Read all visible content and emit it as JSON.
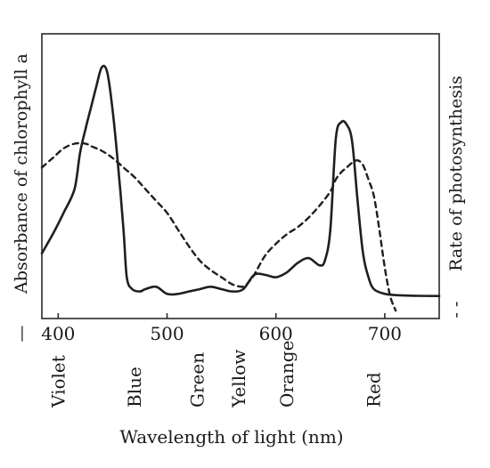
{
  "chart_data": {
    "type": "line",
    "xlabel": "Wavelength of light (nm)",
    "ylabel_left": "Absorbance of chlorophyll a",
    "ylabel_right": "Rate of photosynthesis",
    "legend_left_marker": "—",
    "legend_right_marker": "- -",
    "xlim": [
      385,
      750
    ],
    "ylim": [
      0,
      100
    ],
    "x_ticks": [
      400,
      500,
      600,
      700
    ],
    "color_labels": [
      {
        "label": "Violet",
        "x": 400
      },
      {
        "label": "Blue",
        "x": 470
      },
      {
        "label": "Green",
        "x": 528
      },
      {
        "label": "Yellow",
        "x": 566
      },
      {
        "label": "Orange",
        "x": 610
      },
      {
        "label": "Red",
        "x": 690
      }
    ],
    "series": [
      {
        "style": "solid",
        "x": [
          385,
          395,
          405,
          415,
          420,
          425,
          430,
          435,
          440,
          445,
          450,
          455,
          460,
          463,
          468,
          475,
          480,
          490,
          500,
          510,
          520,
          530,
          540,
          550,
          560,
          570,
          580,
          590,
          600,
          610,
          620,
          630,
          640,
          645,
          650,
          655,
          660,
          665,
          670,
          675,
          680,
          685,
          690,
          700,
          710,
          720,
          730,
          750
        ],
        "y": [
          18,
          26,
          35,
          45,
          60,
          70,
          79,
          88,
          96,
          94,
          78,
          55,
          28,
          8,
          3,
          2,
          3,
          4,
          1,
          1,
          2,
          3,
          4,
          3,
          2,
          3,
          9,
          9,
          8,
          10,
          14,
          16,
          13,
          15,
          28,
          66,
          73,
          72,
          65,
          40,
          18,
          8,
          3,
          1,
          0.5,
          0.3,
          0.2,
          0.1
        ]
      },
      {
        "style": "dashed",
        "x": [
          385,
          395,
          405,
          415,
          425,
          430,
          440,
          450,
          460,
          470,
          480,
          490,
          500,
          510,
          520,
          530,
          540,
          550,
          560,
          570,
          575,
          580,
          590,
          600,
          610,
          620,
          630,
          640,
          650,
          655,
          660,
          665,
          670,
          675,
          680,
          685,
          690,
          695,
          700,
          705,
          710
        ],
        "y": [
          54,
          58,
          62,
          64,
          64,
          63,
          61,
          58,
          54,
          50,
          45,
          40,
          35,
          28,
          21,
          15,
          11,
          8,
          5,
          4,
          6,
          9,
          17,
          22,
          26,
          29,
          33,
          38,
          44,
          49,
          52,
          54,
          56,
          57,
          55,
          49,
          42,
          28,
          12,
          0,
          -6
        ]
      }
    ]
  }
}
